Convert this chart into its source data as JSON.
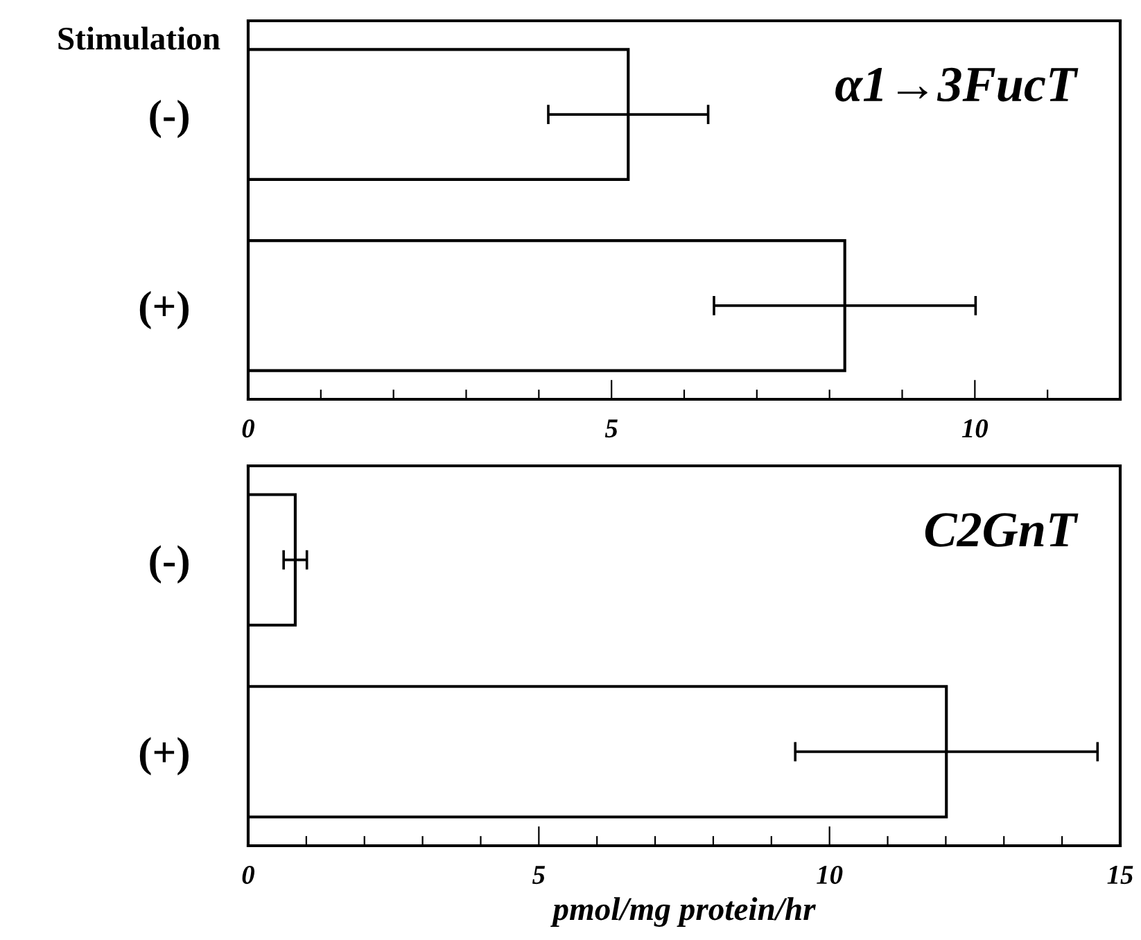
{
  "chart_data": [
    {
      "type": "bar",
      "orientation": "horizontal",
      "categories": [
        "(-)",
        "(+)"
      ],
      "series": [
        {
          "color": "#ffffff",
          "values": [
            5.23,
            8.21
          ],
          "errors": [
            1.1,
            1.8
          ]
        }
      ],
      "xlim": [
        0,
        12
      ],
      "xticks": [
        0,
        {
          "value": 1,
          "label": null
        },
        {
          "value": 2,
          "label": null
        },
        {
          "value": 3,
          "label": null
        },
        {
          "value": 4,
          "label": null
        },
        5,
        {
          "value": 6,
          "label": null
        },
        {
          "value": 7,
          "label": null
        },
        {
          "value": 8,
          "label": null
        },
        {
          "value": 9,
          "label": null
        },
        10,
        {
          "value": 11,
          "label": null
        }
      ],
      "annotations": [
        "Stimulation",
        "α1→3FucT"
      ],
      "grid": false,
      "legend": false
    },
    {
      "type": "bar",
      "orientation": "horizontal",
      "categories": [
        "(-)",
        "(+)"
      ],
      "series": [
        {
          "color": "#ffffff",
          "values": [
            0.81,
            12.01
          ],
          "errors": [
            0.2,
            2.6
          ]
        }
      ],
      "xlim": [
        0,
        15
      ],
      "xticks": [
        0,
        {
          "value": 1,
          "label": null
        },
        {
          "value": 2,
          "label": null
        },
        {
          "value": 3,
          "label": null
        },
        {
          "value": 4,
          "label": null
        },
        5,
        {
          "value": 6,
          "label": null
        },
        {
          "value": 7,
          "label": null
        },
        {
          "value": 8,
          "label": null
        },
        {
          "value": 9,
          "label": null
        },
        10,
        {
          "value": 11,
          "label": null
        },
        {
          "value": 12,
          "label": null
        },
        {
          "value": 13,
          "label": null
        },
        {
          "value": 14,
          "label": null
        },
        15
      ],
      "xlabel": "pmol/mg protein/hr",
      "annotations": [
        "C2GnT"
      ],
      "grid": false,
      "legend": false
    }
  ]
}
